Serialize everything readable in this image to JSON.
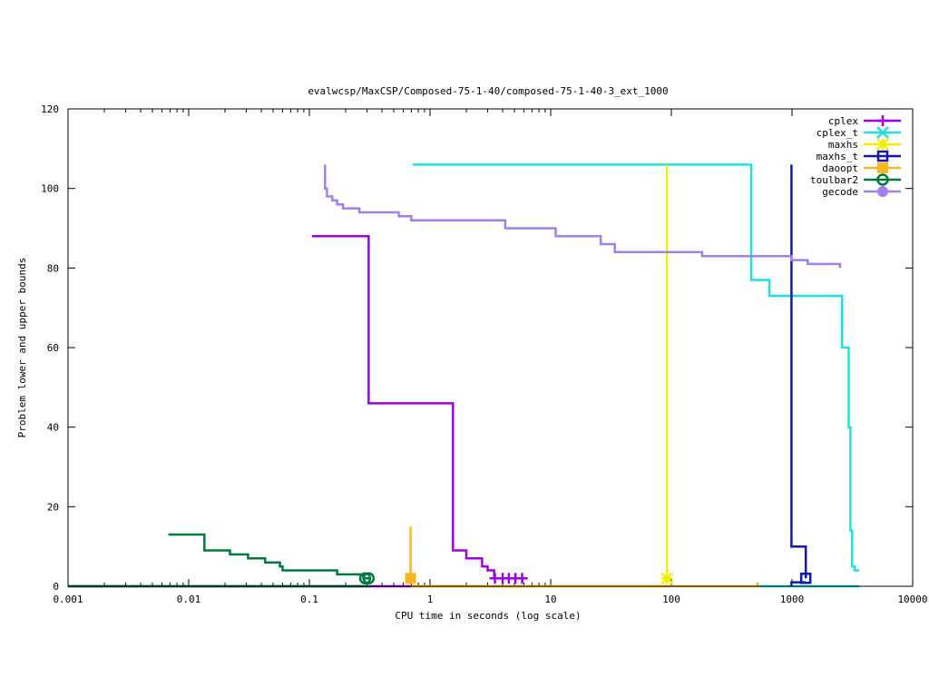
{
  "chart_data": {
    "type": "line",
    "title": "evalwcsp/MaxCSP/Composed-75-1-40/composed-75-1-40-3_ext_1000",
    "xlabel": "CPU time in seconds (log scale)",
    "ylabel": "Problem lower and upper bounds",
    "xscale": "log",
    "xlim": [
      0.001,
      10000
    ],
    "ylim": [
      0,
      120
    ],
    "xticks": [
      0.001,
      0.01,
      0.1,
      1,
      10,
      100,
      1000,
      10000
    ],
    "xtick_labels": [
      "0.001",
      "0.01",
      "0.1",
      "1",
      "10",
      "100",
      "1000",
      "10000"
    ],
    "yticks": [
      0,
      20,
      40,
      60,
      80,
      100,
      120
    ],
    "ytick_labels": [
      "0",
      "20",
      "40",
      "60",
      "80",
      "100",
      "120"
    ],
    "grid": false,
    "legend_position": "top-right",
    "series": [
      {
        "name": "cplex",
        "color": "#a000e0",
        "marker": "plus",
        "points": [
          [
            0.105,
            88
          ],
          [
            0.31,
            88
          ],
          [
            0.31,
            46
          ],
          [
            1.55,
            46
          ],
          [
            1.55,
            9
          ],
          [
            2.0,
            9
          ],
          [
            2.0,
            7
          ],
          [
            2.7,
            7
          ],
          [
            2.7,
            5
          ],
          [
            3.0,
            5
          ],
          [
            3.0,
            4
          ],
          [
            3.4,
            4
          ],
          [
            3.4,
            2
          ],
          [
            5.9,
            2
          ]
        ],
        "marker_points": [
          [
            3.45,
            2
          ],
          [
            4.0,
            2
          ],
          [
            4.5,
            2
          ],
          [
            5.1,
            2
          ],
          [
            5.8,
            2
          ]
        ],
        "lower": [
          [
            0.001,
            0
          ],
          [
            5.9,
            0
          ]
        ]
      },
      {
        "name": "cplex_t",
        "color": "#1ee0e0",
        "marker": "x",
        "points": [
          [
            0.72,
            106
          ],
          [
            460,
            106
          ],
          [
            460,
            77
          ],
          [
            650,
            77
          ],
          [
            650,
            73
          ],
          [
            2600,
            73
          ],
          [
            2600,
            60
          ],
          [
            2950,
            60
          ],
          [
            2950,
            40
          ],
          [
            3050,
            40
          ],
          [
            3050,
            14
          ],
          [
            3150,
            14
          ],
          [
            3150,
            5
          ],
          [
            3300,
            5
          ],
          [
            3300,
            4
          ],
          [
            3600,
            4
          ]
        ],
        "marker_points": [],
        "lower": [
          [
            520,
            0
          ],
          [
            3600,
            0
          ]
        ]
      },
      {
        "name": "maxhs",
        "color": "#f0f000",
        "marker": "asterisk",
        "points": [
          [
            92,
            106
          ],
          [
            92,
            2
          ]
        ],
        "marker_points": [
          [
            92,
            2
          ]
        ],
        "lower": [
          [
            0.72,
            0
          ],
          [
            92,
            0
          ]
        ]
      },
      {
        "name": "maxhs_t",
        "color": "#1018b0",
        "marker": "square",
        "points": [
          [
            990,
            106
          ],
          [
            990,
            10
          ],
          [
            1300,
            10
          ],
          [
            1300,
            2
          ]
        ],
        "marker_points": [
          [
            1300,
            2
          ]
        ],
        "lower": [
          [
            990,
            0
          ],
          [
            990,
            1
          ],
          [
            1300,
            1
          ]
        ]
      },
      {
        "name": "daoopt",
        "color": "#f8b820",
        "marker": "filled-square",
        "points": [
          [
            0.69,
            15
          ],
          [
            0.69,
            2
          ]
        ],
        "marker_points": [
          [
            0.69,
            2
          ]
        ],
        "lower": [
          [
            0.69,
            0
          ],
          [
            520,
            0
          ],
          [
            520,
            1
          ]
        ]
      },
      {
        "name": "toulbar2",
        "color": "#007840",
        "marker": "circle",
        "points": [
          [
            0.0068,
            13
          ],
          [
            0.0135,
            13
          ],
          [
            0.0135,
            9
          ],
          [
            0.022,
            9
          ],
          [
            0.022,
            8
          ],
          [
            0.031,
            8
          ],
          [
            0.031,
            7
          ],
          [
            0.043,
            7
          ],
          [
            0.043,
            6
          ],
          [
            0.057,
            6
          ],
          [
            0.057,
            5
          ],
          [
            0.06,
            5
          ],
          [
            0.06,
            4
          ],
          [
            0.17,
            4
          ],
          [
            0.17,
            3
          ],
          [
            0.28,
            3
          ],
          [
            0.28,
            2
          ],
          [
            0.32,
            2
          ]
        ],
        "marker_points": [
          [
            0.29,
            2
          ],
          [
            0.31,
            2
          ]
        ],
        "lower": [
          [
            0.001,
            0
          ],
          [
            0.32,
            0
          ]
        ]
      },
      {
        "name": "gecode",
        "color": "#a080ee",
        "marker": "filled-circle",
        "points": [
          [
            0.135,
            106
          ],
          [
            0.135,
            100
          ],
          [
            0.14,
            100
          ],
          [
            0.14,
            98
          ],
          [
            0.155,
            98
          ],
          [
            0.155,
            97
          ],
          [
            0.17,
            97
          ],
          [
            0.17,
            96
          ],
          [
            0.19,
            96
          ],
          [
            0.19,
            95
          ],
          [
            0.26,
            95
          ],
          [
            0.26,
            94
          ],
          [
            0.55,
            94
          ],
          [
            0.55,
            93
          ],
          [
            0.7,
            93
          ],
          [
            0.7,
            92
          ],
          [
            4.2,
            92
          ],
          [
            4.2,
            90
          ],
          [
            11,
            90
          ],
          [
            11,
            88
          ],
          [
            26,
            88
          ],
          [
            26,
            86
          ],
          [
            34,
            86
          ],
          [
            34,
            84
          ],
          [
            180,
            84
          ],
          [
            180,
            83
          ],
          [
            990,
            83
          ],
          [
            990,
            82
          ],
          [
            1350,
            82
          ],
          [
            1350,
            81
          ],
          [
            2500,
            81
          ],
          [
            2500,
            80
          ]
        ],
        "marker_points": []
      }
    ]
  }
}
